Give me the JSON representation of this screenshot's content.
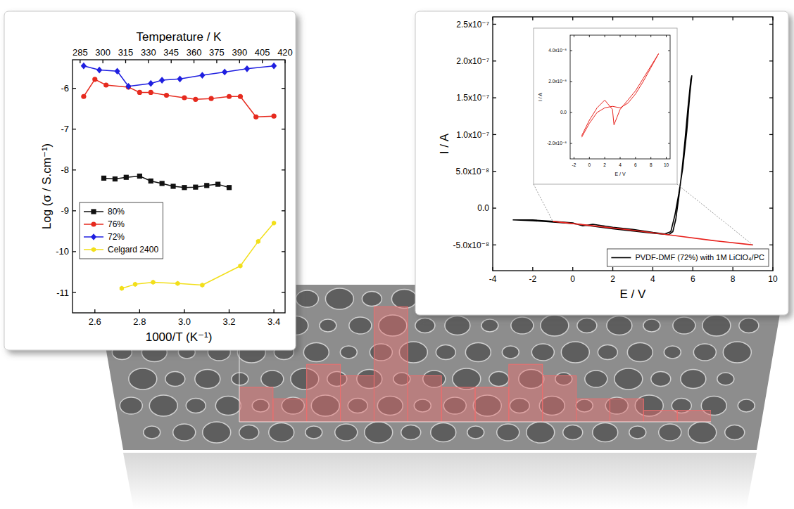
{
  "chart_data": [
    {
      "type": "line",
      "x_label": "1000/T (K⁻¹)",
      "y_label": "Log (σ / S.cm⁻¹)",
      "x2_label": "Temperature / K",
      "xlim": [
        2.5,
        3.45
      ],
      "xticks": [
        2.6,
        2.8,
        {
          "value": 3,
          "label": "3.0"
        },
        3.2,
        3.4
      ],
      "x2lim": [
        280,
        420
      ],
      "x2ticks": [
        285,
        300,
        315,
        330,
        345,
        360,
        375,
        390,
        405,
        420
      ],
      "ylim": [
        -11.5,
        -5.3
      ],
      "yticks": [
        -6,
        -7,
        -8,
        -9,
        -10,
        -11
      ],
      "grid": false,
      "legend": "lower left",
      "series": [
        {
          "name": "80%",
          "color": "#111111",
          "marker": "square",
          "line_style": "solid",
          "x": [
            2.64,
            2.69,
            2.74,
            2.8,
            2.85,
            2.9,
            2.95,
            3.0,
            3.05,
            3.1,
            3.15,
            3.2
          ],
          "values": [
            -8.2,
            -8.22,
            -8.18,
            -8.15,
            -8.27,
            -8.33,
            -8.4,
            -8.43,
            -8.42,
            -8.38,
            -8.35,
            -8.43
          ]
        },
        {
          "name": "76%",
          "color": "#e62a1e",
          "marker": "circle",
          "line_style": "solid",
          "x": [
            2.55,
            2.6,
            2.65,
            2.75,
            2.8,
            2.85,
            2.92,
            3.0,
            3.05,
            3.12,
            3.2,
            3.25,
            3.32,
            3.4
          ],
          "values": [
            -6.2,
            -5.78,
            -5.92,
            -5.97,
            -6.1,
            -6.1,
            -6.17,
            -6.23,
            -6.27,
            -6.25,
            -6.2,
            -6.2,
            -6.7,
            -6.68
          ]
        },
        {
          "name": "72%",
          "color": "#1f1fe0",
          "marker": "diamond",
          "line_style": "solid",
          "x": [
            2.55,
            2.62,
            2.7,
            2.75,
            2.85,
            2.9,
            2.98,
            3.08,
            3.18,
            3.28,
            3.4
          ],
          "values": [
            -5.45,
            -5.55,
            -5.58,
            -5.95,
            -5.88,
            -5.8,
            -5.77,
            -5.68,
            -5.6,
            -5.52,
            -5.45
          ]
        },
        {
          "name": "Celgard 2400",
          "color": "#f2df1a",
          "marker": "hexagon",
          "line_style": "solid",
          "x": [
            2.72,
            2.78,
            2.86,
            2.97,
            3.08,
            3.25,
            3.33,
            3.4
          ],
          "values": [
            -10.9,
            -10.8,
            -10.75,
            -10.78,
            -10.82,
            -10.35,
            -9.75,
            -9.3
          ]
        }
      ]
    },
    {
      "type": "line",
      "x_label": "E / V",
      "y_label": "I / A",
      "xlim": [
        -4,
        10
      ],
      "xticks": [
        -4,
        -2,
        0,
        2,
        4,
        6,
        8,
        10
      ],
      "ylim": [
        -8.5e-08,
        2.6e-07
      ],
      "yticks": [
        {
          "value": -5e-08,
          "label": "-5.0x10⁻⁸"
        },
        {
          "value": 0,
          "label": "0.0"
        },
        {
          "value": 5e-08,
          "label": "5.0x10⁻⁸"
        },
        {
          "value": 1e-07,
          "label": "1.0x10⁻⁷"
        },
        {
          "value": 1.5e-07,
          "label": "1.5x10⁻⁷"
        },
        {
          "value": 2e-07,
          "label": "2.0x10⁻⁷"
        },
        {
          "value": 2.5e-07,
          "label": "2.5x10⁻⁷"
        }
      ],
      "grid": false,
      "legend": "lower right",
      "series": [
        {
          "name": "PVDF-DMF (72%) with 1M LiClO₄/PC",
          "color": "#000000",
          "marker": "none",
          "line_style": "solid",
          "x": [
            -3,
            -2,
            -1,
            0,
            0.5,
            1,
            2,
            3,
            4,
            4.6,
            4.9,
            5.1,
            5.3,
            5.5,
            5.7,
            5.85,
            5.95,
            5.9,
            5.75,
            5.6,
            5.45,
            5.3,
            5.15,
            5.0,
            4.8,
            4.0,
            2.0,
            0,
            -2,
            -3
          ],
          "values": [
            -1.6e-08,
            -1.6e-08,
            -1.8e-08,
            -2e-08,
            -2.4e-08,
            -2.2e-08,
            -2.6e-08,
            -2.9e-08,
            -3.3e-08,
            -3.5e-08,
            -3.2e-08,
            -1e-08,
            2e-08,
            5.5e-08,
            1.05e-07,
            1.55e-07,
            1.8e-07,
            1.75e-07,
            1.35e-07,
            9e-08,
            5e-08,
            1.5e-08,
            -1.5e-08,
            -3.2e-08,
            -3.6e-08,
            -3.4e-08,
            -2.8e-08,
            -2.1e-08,
            -1.7e-08,
            -1.6e-08
          ]
        },
        {
          "color": "#e8231e",
          "marker": "none",
          "line_style": "solid",
          "x": [
            -1,
            1,
            3,
            5,
            7,
            9
          ],
          "values": [
            -1.8e-08,
            -2.4e-08,
            -3e-08,
            -3.7e-08,
            -4.4e-08,
            -5e-08
          ]
        }
      ]
    },
    {
      "type": "line",
      "x_label": "E / V",
      "y_label": "I / A",
      "xlim": [
        -2.5,
        10.5
      ],
      "xticks": [
        -2,
        0,
        2,
        4,
        6,
        8,
        10
      ],
      "ylim": [
        -3e-08,
        5e-08
      ],
      "yticks": [
        {
          "value": -2e-08,
          "label": "-2.0x10⁻⁸"
        },
        {
          "value": 0,
          "label": "0.0"
        },
        {
          "value": 2e-08,
          "label": "2.0x10⁻⁸"
        },
        {
          "value": 4e-08,
          "label": "4.0x10⁻⁸"
        }
      ],
      "grid": false,
      "series": [
        {
          "color": "#e8231e",
          "marker": "none",
          "line_style": "solid",
          "x": [
            -1,
            0,
            1,
            2,
            3,
            3.2,
            4,
            5,
            6,
            7,
            8,
            9,
            8,
            7,
            6,
            5,
            4,
            3,
            2,
            1,
            0,
            -1
          ],
          "values": [
            -1.5e-08,
            -5e-09,
            3e-09,
            8e-09,
            2e-09,
            -8e-09,
            2e-09,
            8e-09,
            1.4e-08,
            2.2e-08,
            3e-08,
            3.8e-08,
            2.9e-08,
            2e-08,
            1.2e-08,
            6e-09,
            3e-09,
            4e-09,
            3e-09,
            0.0,
            -7e-09,
            -1.6e-08
          ]
        }
      ]
    },
    {
      "type": "histogram",
      "bins": [
        2,
        3,
        4,
        5,
        6,
        7,
        8,
        9,
        10,
        11,
        12,
        13,
        14,
        15,
        16
      ],
      "values": [
        3,
        2,
        5,
        4,
        10,
        4,
        3,
        3,
        5,
        4,
        2,
        2,
        1,
        1
      ],
      "xlim": [
        2,
        16
      ],
      "ylim": [
        0,
        11
      ],
      "color": "#eb6e6e",
      "tick_labels": false
    }
  ]
}
